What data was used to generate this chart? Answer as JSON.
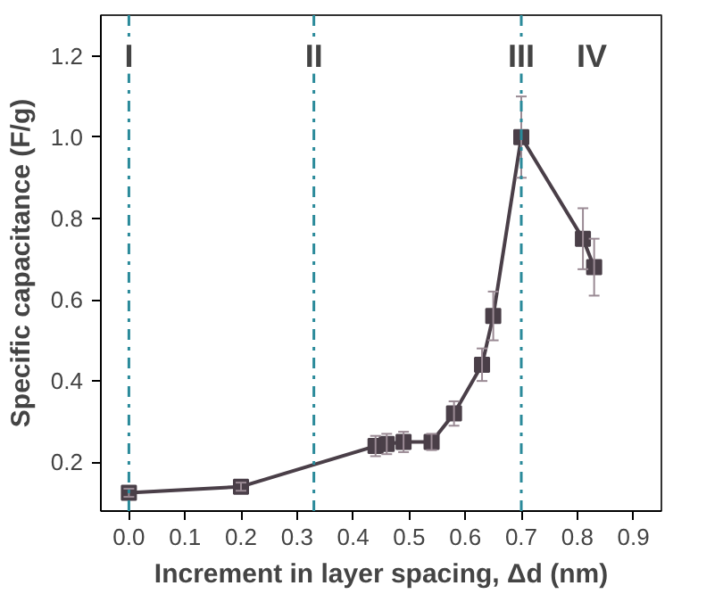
{
  "chart_data": {
    "type": "line",
    "xlabel": "Increment in layer spacing, Δd (nm)",
    "ylabel": "Specific capacitance (F/g)",
    "x": [
      0.0,
      0.2,
      0.44,
      0.46,
      0.49,
      0.54,
      0.58,
      0.63,
      0.65,
      0.7,
      0.81,
      0.83
    ],
    "series": [
      {
        "color": "#4a3f48",
        "values": [
          0.125,
          0.14,
          0.24,
          0.245,
          0.25,
          0.25,
          0.32,
          0.44,
          0.56,
          1.0,
          0.75,
          0.68
        ],
        "errors": [
          0.01,
          0.01,
          0.025,
          0.025,
          0.025,
          0.02,
          0.03,
          0.04,
          0.06,
          0.1,
          0.075,
          0.07
        ]
      }
    ],
    "xlim": [
      -0.05,
      0.95
    ],
    "ylim": [
      0.08,
      1.3
    ],
    "xticks": [
      {
        "value": 0,
        "label": "0.0"
      },
      0.1,
      0.2,
      0.3,
      0.4,
      0.5,
      0.6,
      0.7,
      0.8,
      0.9
    ],
    "yticks": [
      0.2,
      0.4,
      0.6,
      0.8,
      {
        "value": 1,
        "label": "1.0"
      },
      1.2
    ],
    "ref_lines": [
      {
        "axis": "x",
        "value": 0.0,
        "label": "I",
        "color": "#2a8a9a",
        "line_style": "dashdot"
      },
      {
        "axis": "x",
        "value": 0.33,
        "label": "II",
        "color": "#2a8a9a",
        "line_style": "dashdot"
      },
      {
        "axis": "x",
        "value": 0.7,
        "label": "III",
        "color": "#2a8a9a",
        "line_style": "dashdot"
      }
    ],
    "annotations": [
      "IV"
    ],
    "marker": "square",
    "line_style": "solid"
  }
}
